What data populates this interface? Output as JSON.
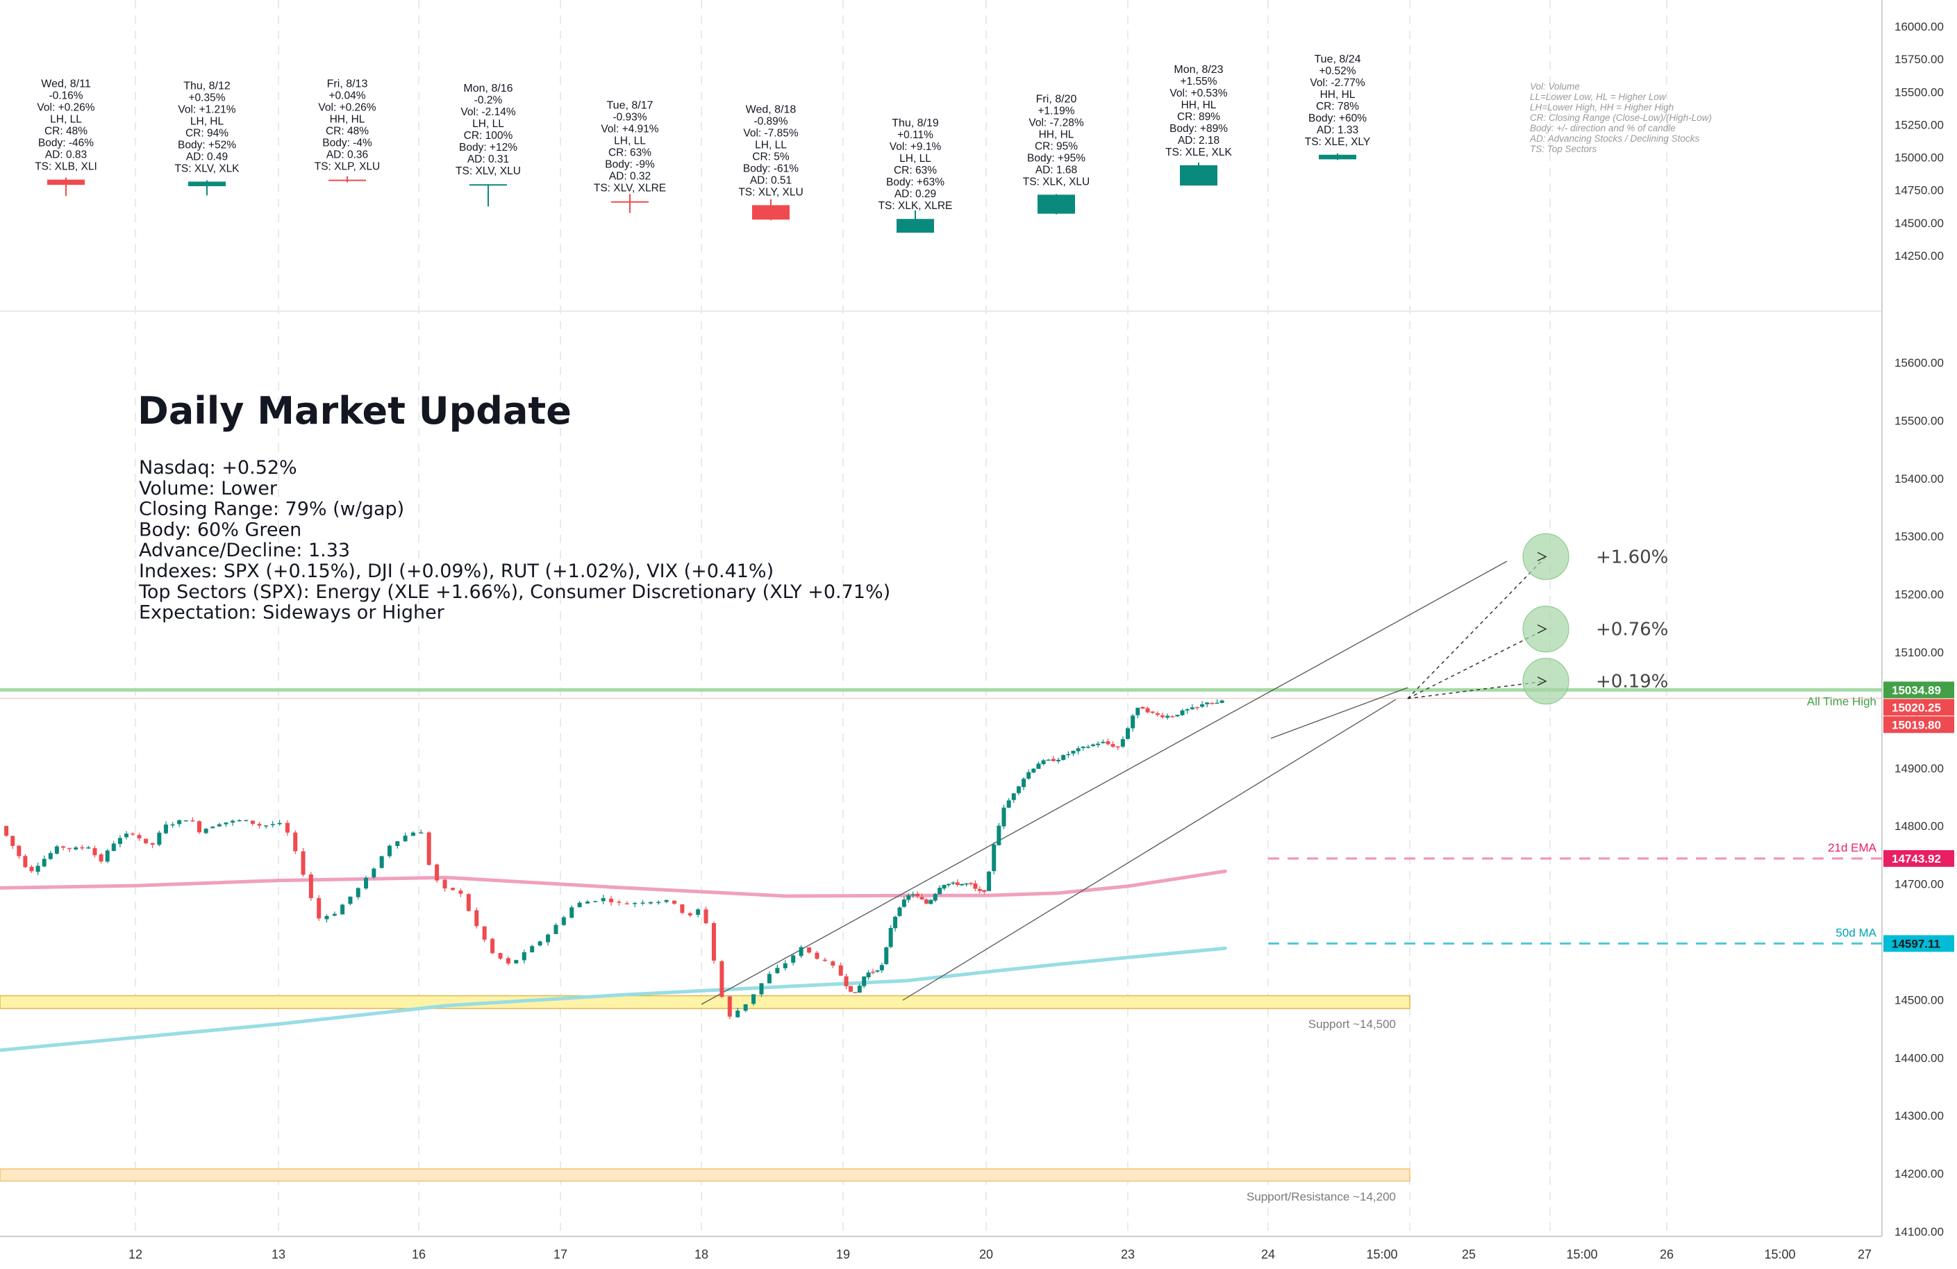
{
  "header": {
    "title": "Daily Market Update",
    "lines": [
      "Nasdaq: +0.52%",
      "Volume: Lower",
      "Closing Range: 79% (w/gap)",
      "Body: 60% Green",
      "Advance/Decline: 1.33",
      "Indexes: SPX (+0.15%), DJI (+0.09%), RUT (+1.02%), VIX (+0.41%)",
      "Top Sectors (SPX): Energy (XLE +1.66%), Consumer Discretionary (XLY +0.71%)",
      "Expectation: Sideways or Higher"
    ]
  },
  "legend_note": [
    "Vol: Volume",
    "LL=Lower Low, HL = Higher Low",
    "LH=Lower High, HH = Higher High",
    "CR: Closing Range (Close-Low)/(High-Low)",
    "Body: +/- direction and % of candle",
    "AD: Advancing Stocks / Declining Stocks",
    "TS: Top Sectors"
  ],
  "colors": {
    "up": "#0a8a7c",
    "down": "#ef4a4f",
    "ema": "#f0a0bd",
    "ma50": "#98dde4",
    "ath": "#a6d9a4",
    "support_fill": "#fff3a8",
    "support_border": "#e2b64a"
  },
  "chart_data": [
    {
      "type": "candlestick",
      "name": "daily-summary",
      "y_axis_ticks": [
        "16000.00",
        "15750.00",
        "15500.00",
        "15250.00",
        "15000.00",
        "14750.00",
        "14500.00",
        "14250.00"
      ],
      "ylim": [
        14150,
        16050
      ],
      "days": [
        {
          "label": "Wed, 8/11",
          "stats": [
            "-0.16%",
            "Vol: +0.26%",
            "LH, LL",
            "CR: 48%",
            "Body: -46%",
            "AD: 0.83",
            "TS: XLB, XLI"
          ],
          "open": 14830,
          "high": 14845,
          "low": 14705,
          "close": 14790
        },
        {
          "label": "Thu, 8/12",
          "stats": [
            "+0.35%",
            "Vol: +1.21%",
            "LH, HL",
            "CR: 94%",
            "Body: +52%",
            "AD: 0.49",
            "TS: XLV, XLK"
          ],
          "open": 14780,
          "high": 14825,
          "low": 14710,
          "close": 14815
        },
        {
          "label": "Fri, 8/13",
          "stats": [
            "+0.04%",
            "Vol: +0.26%",
            "HH, HL",
            "CR: 48%",
            "Body: -4%",
            "AD: 0.36",
            "TS: XLP, XLU"
          ],
          "open": 14830,
          "high": 14855,
          "low": 14810,
          "close": 14825
        },
        {
          "label": "Mon, 8/16",
          "stats": [
            "-0.2%",
            "Vol: -2.14%",
            "LH, LL",
            "CR: 100%",
            "Body: +12%",
            "AD: 0.31",
            "TS: XLV, XLU"
          ],
          "open": 14785,
          "high": 14795,
          "low": 14625,
          "close": 14795
        },
        {
          "label": "Tue, 8/17",
          "stats": [
            "-0.93%",
            "Vol: +4.91%",
            "LH, LL",
            "CR: 63%",
            "Body: -9%",
            "AD: 0.32",
            "TS: XLV, XLRE"
          ],
          "open": 14665,
          "high": 14720,
          "low": 14575,
          "close": 14655
        },
        {
          "label": "Wed, 8/18",
          "stats": [
            "-0.89%",
            "Vol: -7.85%",
            "LH, LL",
            "CR: 5%",
            "Body: -61%",
            "AD: 0.51",
            "TS: XLY, XLU"
          ],
          "open": 14635,
          "high": 14680,
          "low": 14520,
          "close": 14525
        },
        {
          "label": "Thu, 8/19",
          "stats": [
            "+0.11%",
            "Vol: +9.1%",
            "LH, LL",
            "CR: 63%",
            "Body: +63%",
            "AD: 0.29",
            "TS: XLK, XLRE"
          ],
          "open": 14425,
          "high": 14595,
          "low": 14425,
          "close": 14530
        },
        {
          "label": "Fri, 8/20",
          "stats": [
            "+1.19%",
            "Vol: -7.28%",
            "HH, HL",
            "CR: 95%",
            "Body: +95%",
            "AD: 1.68",
            "TS: XLK, XLU"
          ],
          "open": 14570,
          "high": 14720,
          "low": 14565,
          "close": 14715
        },
        {
          "label": "Mon, 8/23",
          "stats": [
            "+1.55%",
            "Vol: +0.53%",
            "HH, HL",
            "CR: 89%",
            "Body: +89%",
            "AD: 2.18",
            "TS: XLE, XLK"
          ],
          "open": 14785,
          "high": 14960,
          "low": 14785,
          "close": 14940
        },
        {
          "label": "Tue, 8/24",
          "stats": [
            "+0.52%",
            "Vol: -2.77%",
            "HH, HL",
            "CR: 78%",
            "Body: +60%",
            "AD: 1.33",
            "TS: XLE, XLY"
          ],
          "open": 14985,
          "high": 15030,
          "low": 14980,
          "close": 15020
        }
      ]
    },
    {
      "type": "candlestick",
      "name": "intraday-30m",
      "y_axis_ticks": [
        "15600.00",
        "15500.00",
        "15400.00",
        "15300.00",
        "15200.00",
        "15100.00",
        "15000.00",
        "14900.00",
        "14800.00",
        "14700.00",
        "14600.00",
        "14500.00",
        "14400.00",
        "14300.00",
        "14200.00",
        "14100.00"
      ],
      "ylim": [
        14090,
        15660
      ],
      "x_ticks": [
        "12",
        "13",
        "16",
        "17",
        "18",
        "19",
        "20",
        "23",
        "24",
        "15:00",
        "25",
        "15:00",
        "26",
        "15:00",
        "27"
      ],
      "path_keypoints": [
        [
          0,
          14800
        ],
        [
          1.3,
          14720
        ],
        [
          2.0,
          14745
        ],
        [
          2.6,
          14765
        ],
        [
          3.2,
          14760
        ],
        [
          4.0,
          14765
        ],
        [
          4.4,
          14735
        ],
        [
          5.0,
          14770
        ],
        [
          5.8,
          14790
        ],
        [
          6.3,
          14775
        ],
        [
          6.6,
          14760
        ],
        [
          7.2,
          14800
        ],
        [
          8.0,
          14810
        ],
        [
          8.3,
          14815
        ],
        [
          8.6,
          14790
        ],
        [
          9.5,
          14805
        ],
        [
          10.5,
          14810
        ],
        [
          11.3,
          14800
        ],
        [
          12.0,
          14805
        ],
        [
          12.3,
          14790
        ],
        [
          12.8,
          14730
        ],
        [
          13.4,
          14640
        ],
        [
          14.0,
          14650
        ],
        [
          15.0,
          14700
        ],
        [
          16.0,
          14770
        ],
        [
          16.8,
          14790
        ],
        [
          17.0,
          14805
        ],
        [
          17.3,
          14740
        ],
        [
          17.8,
          14690
        ],
        [
          18.4,
          14690
        ],
        [
          19.0,
          14630
        ],
        [
          19.6,
          14580
        ],
        [
          20.2,
          14560
        ],
        [
          21.5,
          14610
        ],
        [
          22.5,
          14665
        ],
        [
          23.5,
          14675
        ],
        [
          24.2,
          14665
        ],
        [
          25.0,
          14670
        ],
        [
          26.0,
          14670
        ],
        [
          26.5,
          14640
        ],
        [
          27.0,
          14660
        ],
        [
          27.3,
          14610
        ],
        [
          27.6,
          14520
        ],
        [
          28.0,
          14470
        ],
        [
          28.6,
          14495
        ],
        [
          29.3,
          14540
        ],
        [
          30.0,
          14565
        ],
        [
          30.5,
          14590
        ],
        [
          31.0,
          14575
        ],
        [
          31.7,
          14555
        ],
        [
          32.3,
          14520
        ],
        [
          32.8,
          14510
        ],
        [
          33.4,
          14545
        ],
        [
          34.0,
          14550
        ],
        [
          34.5,
          14560
        ],
        [
          35.0,
          14625
        ],
        [
          35.5,
          14660
        ],
        [
          36.3,
          14685
        ],
        [
          37.3,
          14665
        ],
        [
          38.2,
          14700
        ],
        [
          39.0,
          14700
        ],
        [
          40.0,
          14700
        ],
        [
          40.5,
          14685
        ],
        [
          41.0,
          14690
        ],
        [
          41.5,
          14780
        ],
        [
          42.0,
          14830
        ],
        [
          42.7,
          14865
        ],
        [
          43.3,
          14890
        ],
        [
          44.0,
          14910
        ],
        [
          45.0,
          14915
        ],
        [
          46.0,
          14930
        ],
        [
          46.5,
          14935
        ],
        [
          47.5,
          14945
        ],
        [
          48.5,
          14935
        ],
        [
          49.0,
          14970
        ],
        [
          49.4,
          15000
        ],
        [
          49.8,
          15005
        ],
        [
          50.3,
          14995
        ],
        [
          50.8,
          14990
        ],
        [
          51.5,
          14990
        ],
        [
          52.3,
          15000
        ],
        [
          53.0,
          15005
        ],
        [
          53.5,
          15015
        ],
        [
          54.0,
          15010
        ],
        [
          54.5,
          15020
        ]
      ],
      "ema21": [
        [
          0,
          14693
        ],
        [
          6,
          14697
        ],
        [
          12,
          14706
        ],
        [
          18,
          14711
        ],
        [
          24,
          14694
        ],
        [
          30,
          14679
        ],
        [
          36,
          14680
        ],
        [
          41,
          14680
        ],
        [
          45.0,
          14684
        ],
        [
          49,
          14696
        ],
        [
          54.5,
          14722
        ]
      ],
      "ma50": [
        [
          0,
          14413
        ],
        [
          12,
          14458
        ],
        [
          18,
          14490
        ],
        [
          24,
          14508
        ],
        [
          30,
          14523
        ],
        [
          36,
          14533
        ],
        [
          41,
          14548
        ],
        [
          45.0,
          14561
        ],
        [
          49,
          14573
        ],
        [
          54.5,
          14589
        ]
      ],
      "levels": [
        {
          "label": "All Time High",
          "value": 15034.89
        },
        {
          "label": "21d EMA",
          "value": 14743.92
        },
        {
          "label": "50d MA",
          "value": 14597.11
        }
      ],
      "price_tags": [
        "15034.89",
        "15020.25",
        "15019.80"
      ],
      "zones": [
        {
          "label": "Support ~14,500",
          "from": 14485,
          "to": 14507
        },
        {
          "label": "Support/Resistance ~14,200",
          "from": 14187,
          "to": 14208
        }
      ],
      "projections": [
        {
          "label": "+1.60%",
          "target": 15265
        },
        {
          "label": "+0.76%",
          "target": 15140
        },
        {
          "label": "+0.19%",
          "target": 15050
        }
      ],
      "start_value": 15020
    }
  ]
}
